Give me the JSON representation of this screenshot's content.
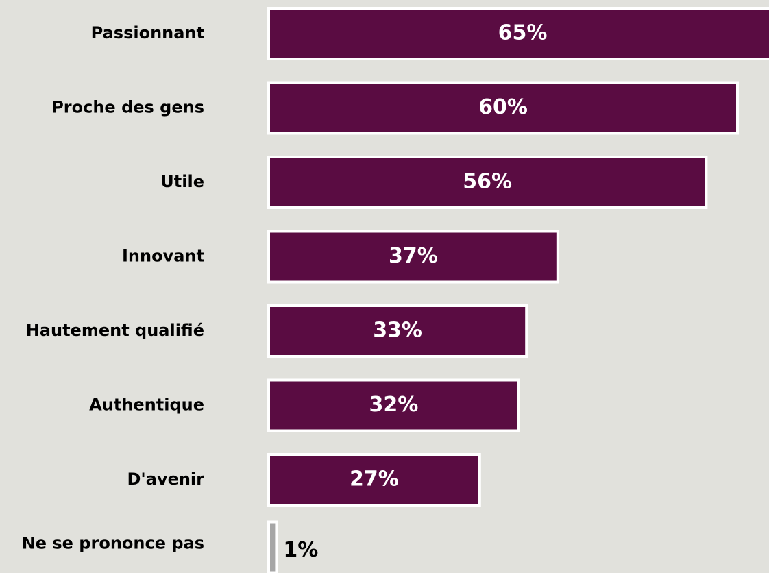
{
  "chart_data": {
    "type": "bar",
    "orientation": "horizontal",
    "categories": [
      "Passionnant",
      "Proche des gens",
      "Utile",
      "Innovant",
      "Hautement qualifié",
      "Authentique",
      "D'avenir",
      "Ne se prononce pas"
    ],
    "values": [
      65,
      60,
      56,
      37,
      33,
      32,
      27,
      1
    ],
    "value_labels": [
      "65%",
      "60%",
      "56%",
      "37%",
      "33%",
      "32%",
      "27%",
      "1%"
    ],
    "colors": [
      "#5a0c42",
      "#5a0c42",
      "#5a0c42",
      "#5a0c42",
      "#5a0c42",
      "#5a0c42",
      "#5a0c42",
      "#a6a6a6"
    ]
  }
}
